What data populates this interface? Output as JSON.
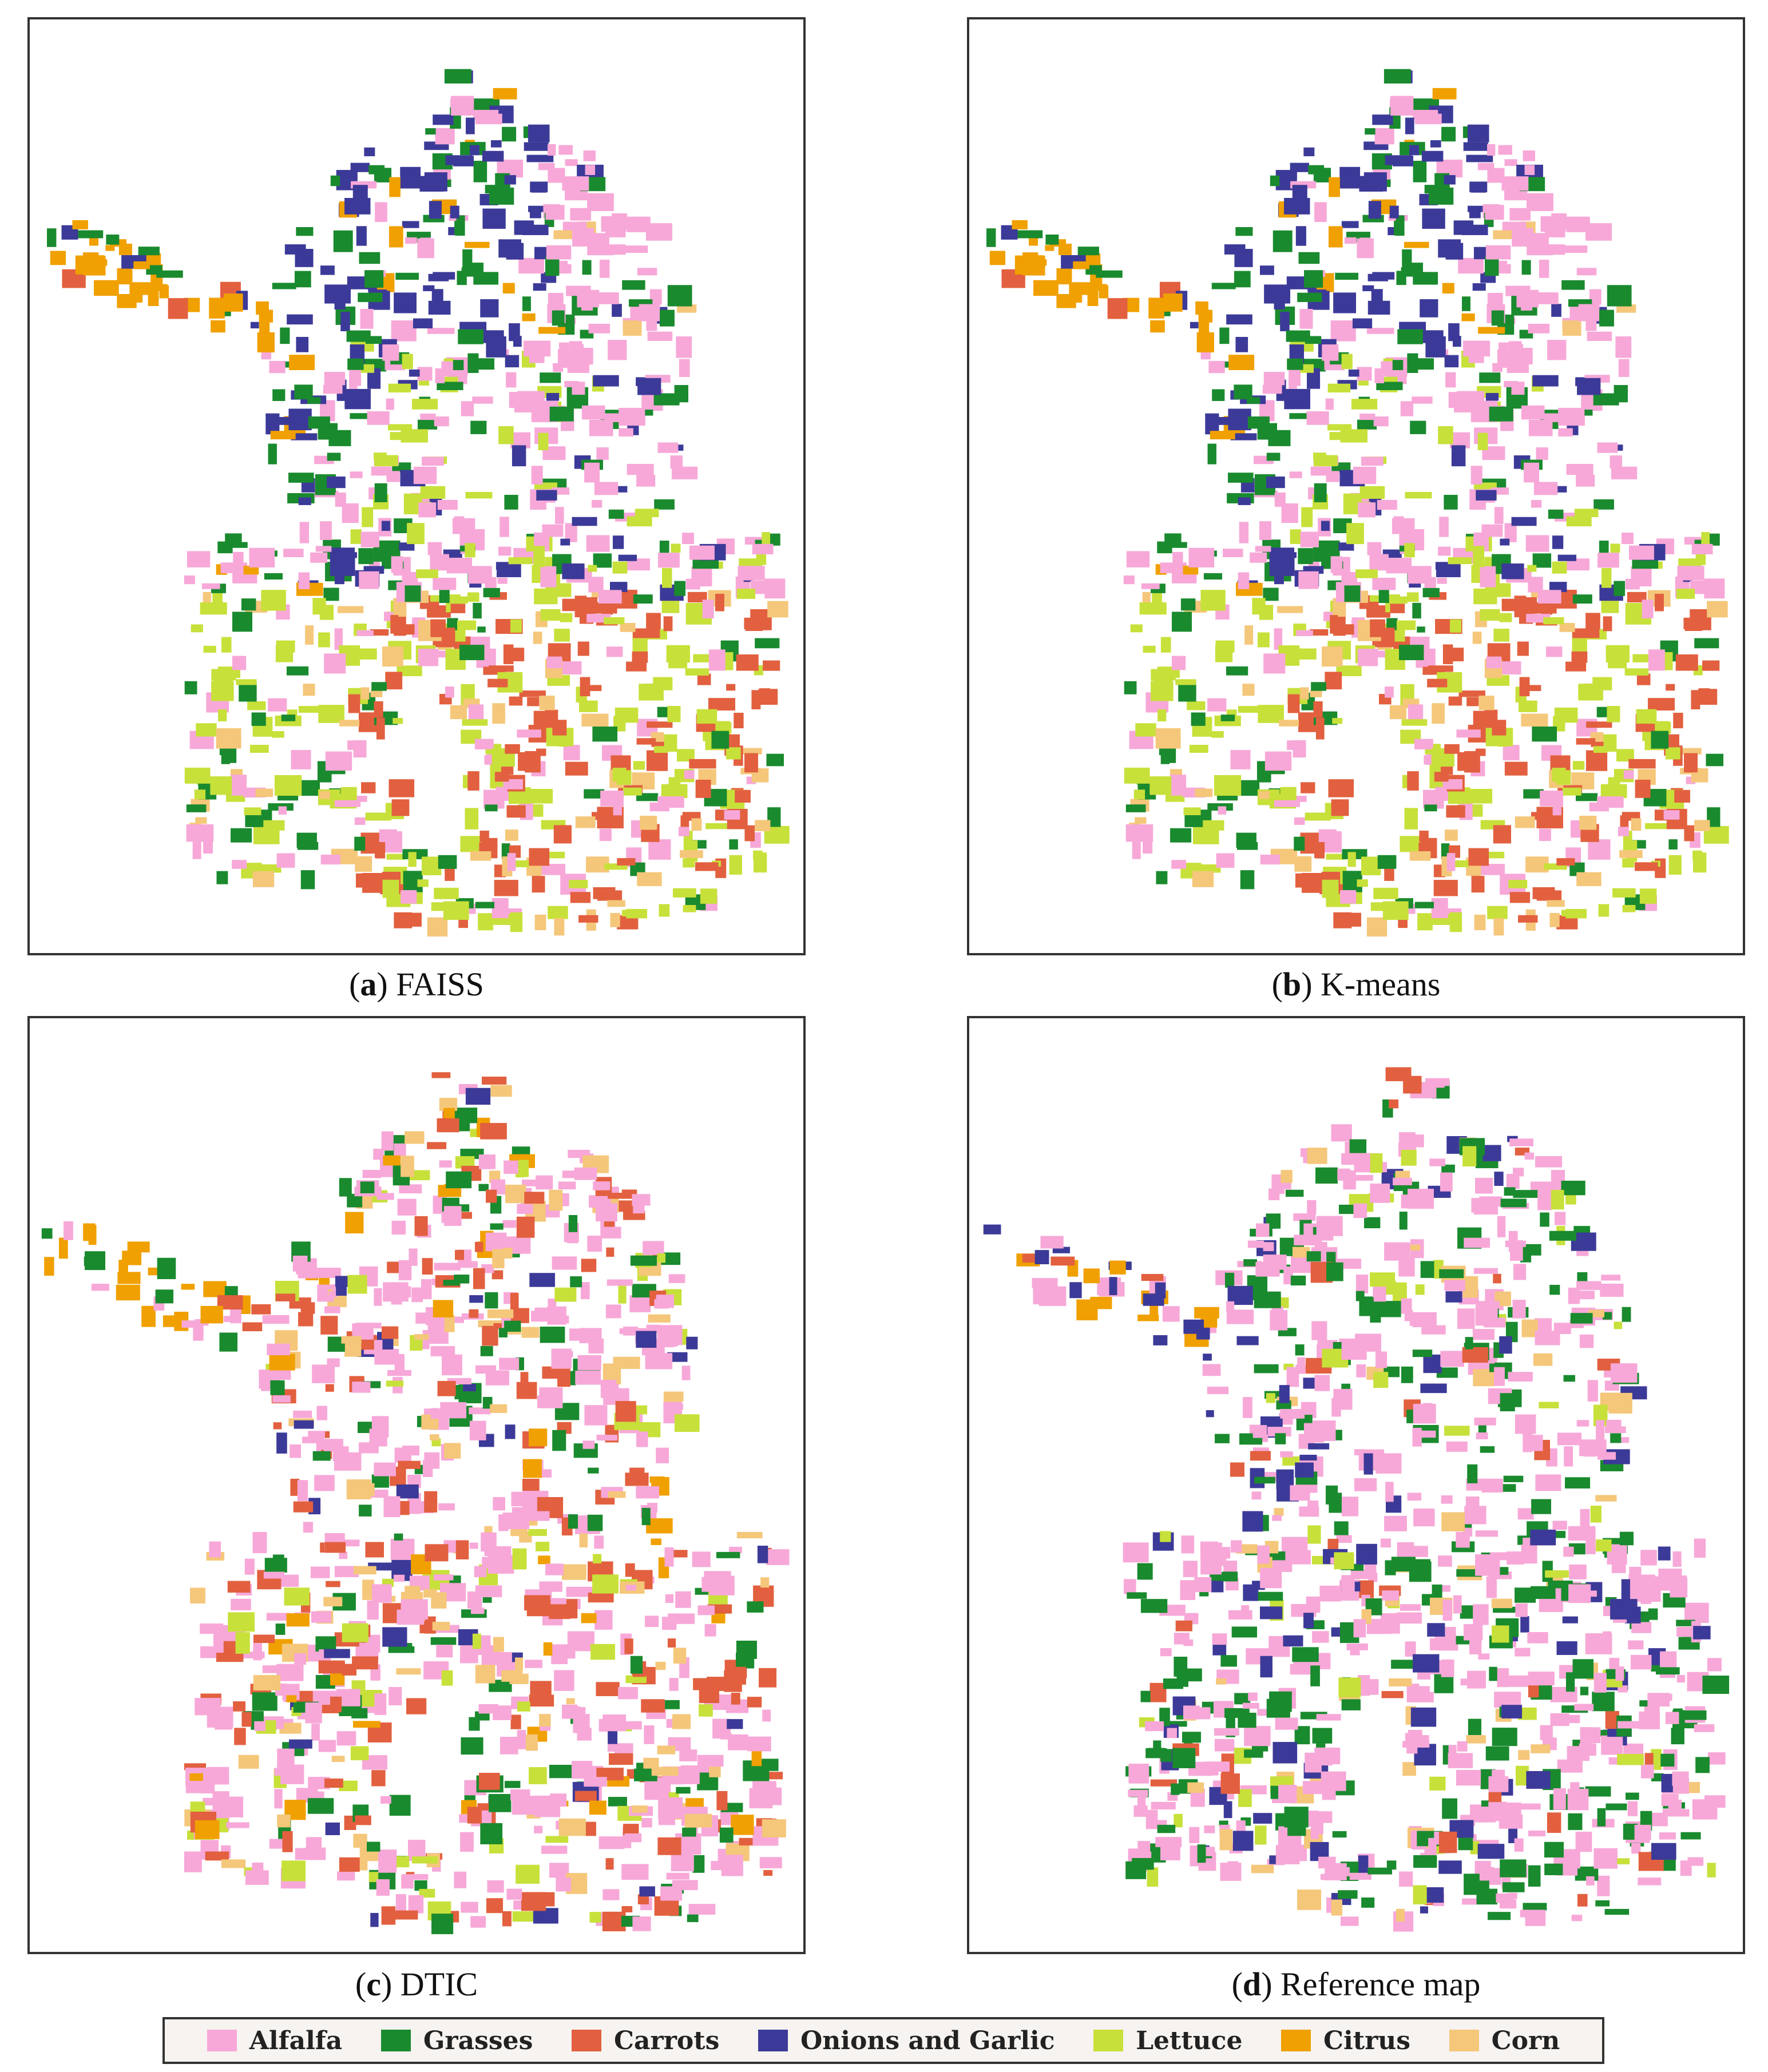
{
  "panels": [
    {
      "key": "a",
      "letter": "a",
      "title": "FAISS",
      "pattern": "faiss"
    },
    {
      "key": "b",
      "letter": "b",
      "title": "K-means",
      "pattern": "kmeans"
    },
    {
      "key": "c",
      "letter": "c",
      "title": "DTIC",
      "pattern": "dtic"
    },
    {
      "key": "d",
      "letter": "d",
      "title": "Reference map",
      "pattern": "reference"
    }
  ],
  "legend": [
    {
      "label": "Alfalfa",
      "color": "#f7a8d8"
    },
    {
      "label": "Grasses",
      "color": "#1a8a2e"
    },
    {
      "label": "Carrots",
      "color": "#e2603f"
    },
    {
      "label": "Onions and Garlic",
      "color": "#3c3a98"
    },
    {
      "label": "Lettuce",
      "color": "#c8e03a"
    },
    {
      "label": "Citrus",
      "color": "#f0a000"
    },
    {
      "label": "Corn",
      "color": "#f5c77a"
    }
  ]
}
